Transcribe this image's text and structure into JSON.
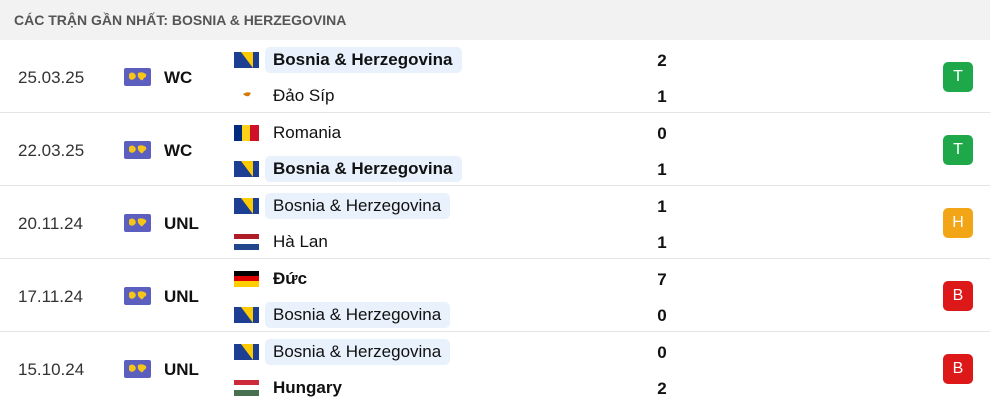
{
  "header": {
    "title": "CÁC TRẬN GẦN NHẤT: BOSNIA & HERZEGOVINA"
  },
  "matches": [
    {
      "date": "25.03.25",
      "competition": "WC",
      "home": {
        "name": "Bosnia & Herzegovina",
        "score": 2,
        "bold": true,
        "highlight": true,
        "flag": "bih"
      },
      "away": {
        "name": "Đảo Síp",
        "score": 1,
        "bold": false,
        "highlight": false,
        "flag": "cyp"
      },
      "result": "T",
      "result_color": "#1fa84a"
    },
    {
      "date": "22.03.25",
      "competition": "WC",
      "home": {
        "name": "Romania",
        "score": 0,
        "bold": false,
        "highlight": false,
        "flag": "rou"
      },
      "away": {
        "name": "Bosnia & Herzegovina",
        "score": 1,
        "bold": true,
        "highlight": true,
        "flag": "bih"
      },
      "result": "T",
      "result_color": "#1fa84a"
    },
    {
      "date": "20.11.24",
      "competition": "UNL",
      "home": {
        "name": "Bosnia & Herzegovina",
        "score": 1,
        "bold": false,
        "highlight": true,
        "flag": "bih"
      },
      "away": {
        "name": "Hà Lan",
        "score": 1,
        "bold": false,
        "highlight": false,
        "flag": "ned"
      },
      "result": "H",
      "result_color": "#f2a516"
    },
    {
      "date": "17.11.24",
      "competition": "UNL",
      "home": {
        "name": "Đức",
        "score": 7,
        "bold": true,
        "highlight": false,
        "flag": "ger"
      },
      "away": {
        "name": "Bosnia & Herzegovina",
        "score": 0,
        "bold": false,
        "highlight": true,
        "flag": "bih"
      },
      "result": "B",
      "result_color": "#dc1818"
    },
    {
      "date": "15.10.24",
      "competition": "UNL",
      "home": {
        "name": "Bosnia & Herzegovina",
        "score": 0,
        "bold": false,
        "highlight": true,
        "flag": "bih"
      },
      "away": {
        "name": "Hungary",
        "score": 2,
        "bold": true,
        "highlight": false,
        "flag": "hun"
      },
      "result": "B",
      "result_color": "#dc1818"
    }
  ]
}
